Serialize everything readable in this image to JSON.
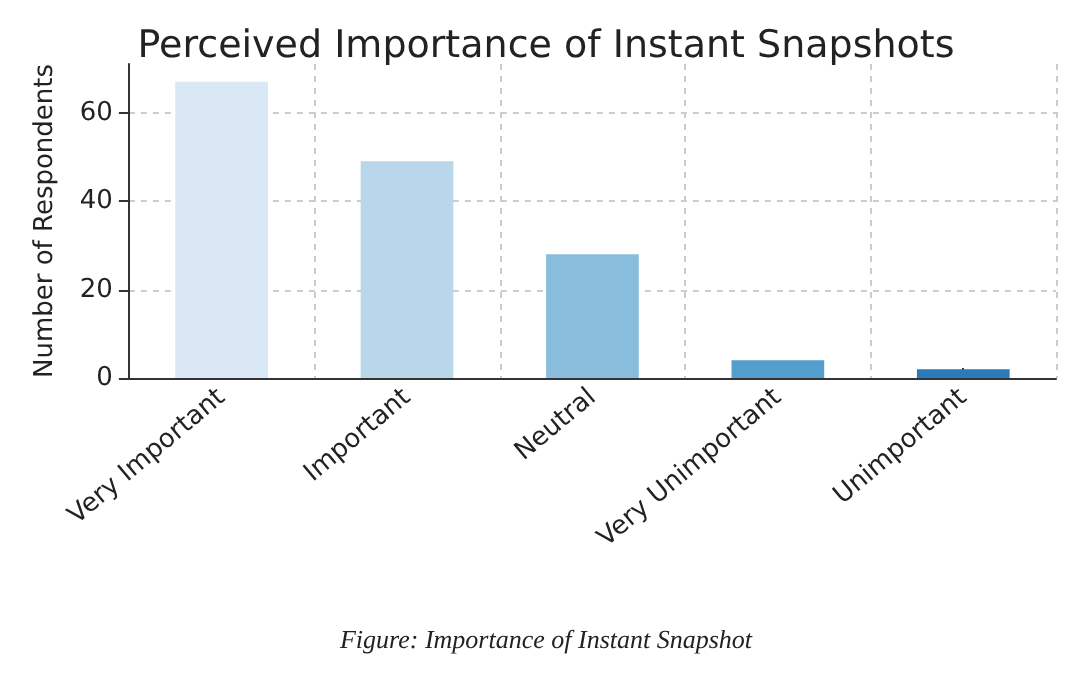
{
  "chart_data": {
    "type": "bar",
    "title": "Perceived Importance of Instant Snapshots",
    "ylabel": "Number of Respondents",
    "categories": [
      "Very Important",
      "Important",
      "Neutral",
      "Very Unimportant",
      "Unimportant"
    ],
    "values": [
      67,
      49,
      28,
      4,
      2
    ],
    "colors": [
      "#dae8f5",
      "#bad6ea",
      "#88bedc",
      "#539ecd",
      "#2b7bba"
    ],
    "ylim": [
      0,
      71
    ],
    "yticks": [
      0,
      20,
      40,
      60
    ],
    "grid": true,
    "annotations": [
      "Figure: Importance of Instant Snapshot"
    ]
  }
}
